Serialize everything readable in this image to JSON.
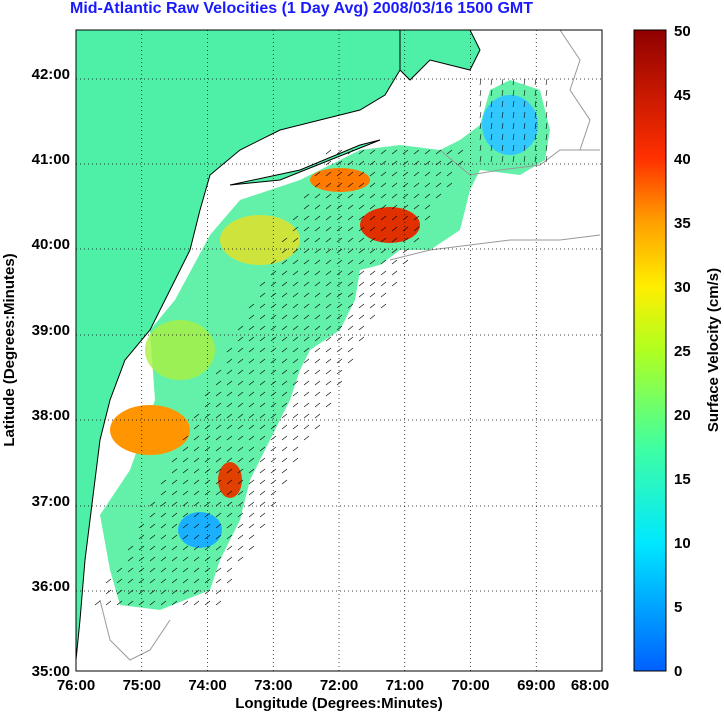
{
  "title": "Mid-Atlantic Raw Velocities (1 Day Avg) 2008/03/16 1500 GMT",
  "map": {
    "x_label": "Longitude (Degrees:Minutes)",
    "y_label": "Latitude (Degrees:Minutes)",
    "lon_range": [
      -76,
      -68
    ],
    "lat_range": [
      35,
      42.5
    ],
    "x_ticks": [
      "76:00",
      "75:00",
      "74:00",
      "73:00",
      "72:00",
      "71:00",
      "70:00",
      "69:00",
      "68:00"
    ],
    "y_ticks": [
      "35:00",
      "36:00",
      "37:00",
      "38:00",
      "39:00",
      "40:00",
      "41:00",
      "42:00"
    ],
    "land_color": "#4ef0a8",
    "grid": "dotted"
  },
  "colorbar": {
    "label": "Surface Velocity (cm/s)",
    "range": [
      0,
      50
    ],
    "ticks": [
      "0",
      "5",
      "10",
      "15",
      "20",
      "25",
      "30",
      "35",
      "40",
      "45",
      "50"
    ],
    "colormap": "jet"
  }
}
